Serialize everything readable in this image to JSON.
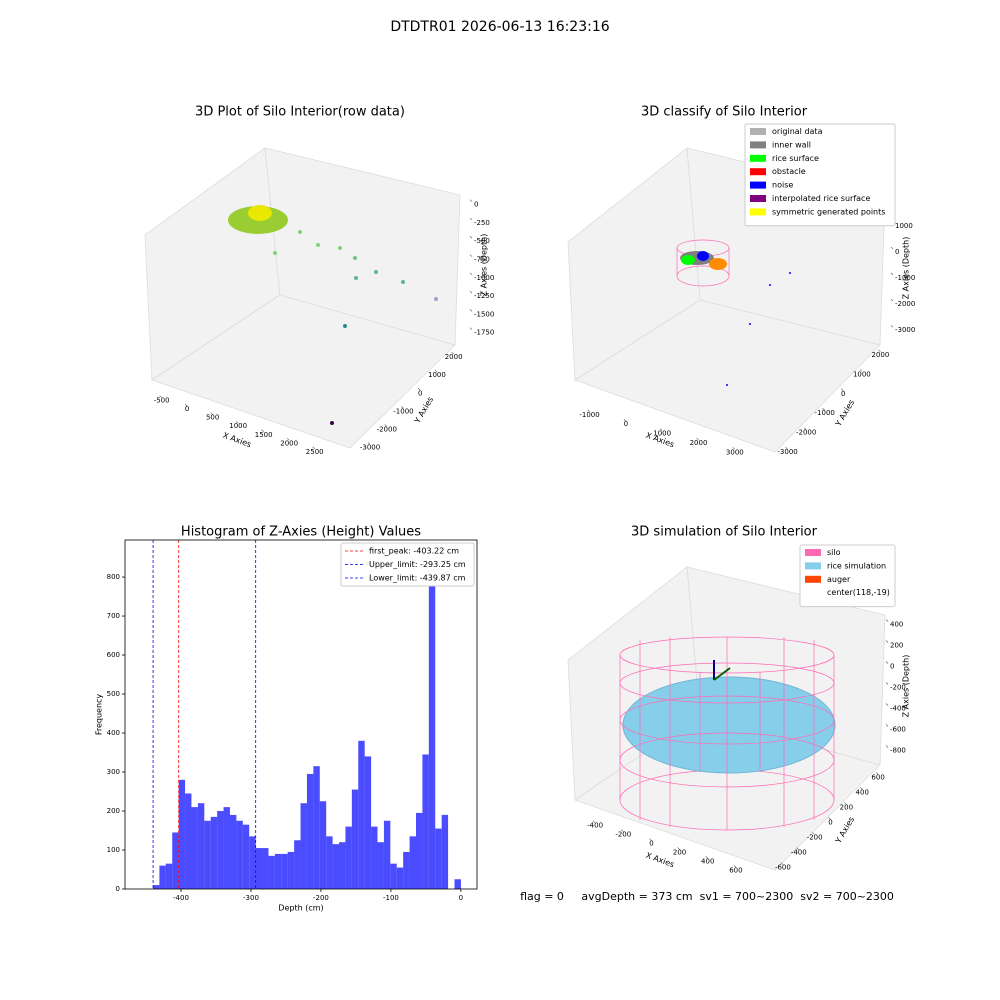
{
  "title": "DTDTR01 2026-06-13 16:23:16",
  "footer": "flag = 0     avgDepth = 373 cm  sv1 = 700~2300  sv2 = 700~2300",
  "chart_data": [
    {
      "type": "scatter3d",
      "title": "3D Plot of Silo Interior(row data)",
      "xlabel": "X Axies",
      "ylabel": "Y Axies",
      "zlabel": "Z Axies (Depth)",
      "xlim": [
        -650,
        2800
      ],
      "xticks": [
        -500,
        0,
        500,
        1000,
        1500,
        2000,
        2500
      ],
      "ylim": [
        -3300,
        2500
      ],
      "yticks": [
        -3000,
        -2000,
        -1000,
        0,
        1000,
        2000
      ],
      "zlim": [
        50,
        -1850
      ],
      "zticks": [
        0,
        -250,
        -500,
        -750,
        -1000,
        -1250,
        -1500,
        -1750
      ]
    },
    {
      "type": "scatter3d",
      "title": "3D classify of Silo Interior",
      "xlabel": "X Axies",
      "ylabel": "Y Axies",
      "zlabel": "Z Axies (Depth)",
      "xlim": [
        -1400,
        3500
      ],
      "xticks": [
        -1000,
        0,
        1000,
        2000,
        3000
      ],
      "ylim": [
        -3300,
        2300
      ],
      "yticks": [
        -3000,
        -2000,
        -1000,
        0,
        1000,
        2000
      ],
      "zlim": [
        1300,
        -3300
      ],
      "zticks": [
        1000,
        0,
        -1000,
        -2000,
        -3000
      ],
      "legend": [
        {
          "name": "original data",
          "color": "#b0b0b0"
        },
        {
          "name": "inner wall",
          "color": "#808080"
        },
        {
          "name": "rice surface",
          "color": "#00ff00"
        },
        {
          "name": "obstacle",
          "color": "#ff0000"
        },
        {
          "name": "noise",
          "color": "#0000ff"
        },
        {
          "name": "interpolated rice surface",
          "color": "#800080"
        },
        {
          "name": "symmetric generated points",
          "color": "#ffff00"
        }
      ]
    },
    {
      "type": "histogram",
      "title": "Histogram of Z-Axies (Height) Values",
      "xlabel": "Depth (cm)",
      "ylabel": "Frequency",
      "color": "#0000ff",
      "xlim": [
        -480,
        23
      ],
      "xticks": [
        -400,
        -300,
        -200,
        -100,
        0
      ],
      "ylim": [
        0,
        895
      ],
      "yticks": [
        0,
        100,
        200,
        300,
        400,
        500,
        600,
        700,
        800
      ],
      "bins": [
        -440,
        -430.83,
        -421.67,
        -412.5,
        -403.33,
        -394.17,
        -385,
        -375.83,
        -366.67,
        -357.5,
        -348.33,
        -339.17,
        -330,
        -320.83,
        -311.67,
        -302.5,
        -293.33,
        -284.17,
        -275,
        -265.83,
        -256.67,
        -247.5,
        -238.33,
        -229.17,
        -220,
        -210.83,
        -201.67,
        -192.5,
        -183.33,
        -174.17,
        -165,
        -155.83,
        -146.67,
        -137.5,
        -128.33,
        -119.17,
        -110,
        -100.83,
        -91.67,
        -82.5,
        -73.33,
        -64.17,
        -55,
        -45.83,
        -36.67,
        -27.5,
        -18.33,
        -9.17,
        0
      ],
      "counts": [
        10,
        60,
        65,
        145,
        280,
        245,
        210,
        220,
        175,
        185,
        200,
        210,
        190,
        175,
        165,
        135,
        105,
        105,
        85,
        90,
        90,
        95,
        125,
        220,
        295,
        315,
        225,
        135,
        115,
        120,
        160,
        255,
        380,
        340,
        160,
        120,
        175,
        65,
        55,
        95,
        135,
        195,
        345,
        880,
        155,
        190,
        0,
        25
      ],
      "lines": [
        {
          "label": "first_peak: -403.22 cm",
          "value": -403.22,
          "color": "#ff0000"
        },
        {
          "label": "Upper_limit: -293.25 cm",
          "value": -293.25,
          "color": "#0000ff"
        },
        {
          "label": "Lower_limit: -439.87 cm",
          "value": -439.87,
          "color": "#0000ff"
        }
      ]
    },
    {
      "type": "scatter3d",
      "title": "3D simulation of Silo Interior",
      "xlabel": "X Axies",
      "ylabel": "Y Axies",
      "zlabel": "Z Axies (Depth)",
      "xlim": [
        -550,
        750
      ],
      "xticks": [
        -400,
        -200,
        0,
        200,
        400,
        600
      ],
      "ylim": [
        -750,
        750
      ],
      "yticks": [
        -600,
        -400,
        -200,
        0,
        200,
        400,
        600
      ],
      "zlim": [
        500,
        -900
      ],
      "zticks": [
        400,
        200,
        0,
        -200,
        -400,
        -600,
        -800
      ],
      "legend": [
        {
          "name": "silo",
          "color": "#ff69b4"
        },
        {
          "name": "rice simulation",
          "color": "#87ceeb"
        },
        {
          "name": "auger",
          "color": "#ff4500"
        },
        {
          "name": "center(118,-19)"
        }
      ]
    }
  ]
}
